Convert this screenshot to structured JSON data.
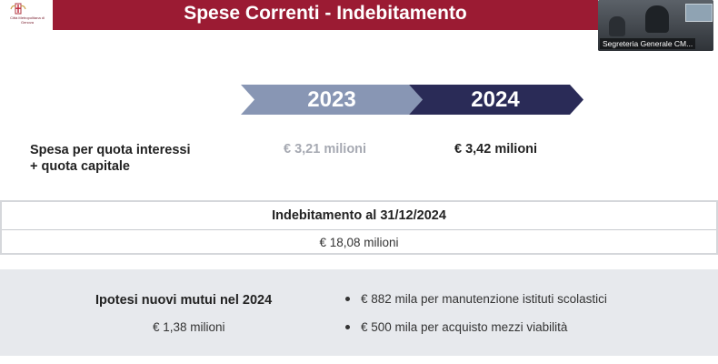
{
  "header": {
    "title": "Spese Correnti - Indebitamento",
    "logo_text": "Città Metropolitana di Genova",
    "title_bar_color": "#9b1b33"
  },
  "video_overlay": {
    "caption": "Segreteria Generale CM..."
  },
  "years": {
    "first": "2023",
    "second": "2024",
    "first_color": "#8896b4",
    "second_color": "#2a2b57"
  },
  "spesa": {
    "label_line1": "Spesa per quota interessi",
    "label_line2": "+ quota capitale",
    "value_2023": "€ 3,21 milioni",
    "value_2024": "€ 3,42 milioni"
  },
  "indebitamento": {
    "title": "Indebitamento al 31/12/2024",
    "value": "€ 18,08 milioni"
  },
  "mutui": {
    "title": "Ipotesi nuovi mutui nel 2024",
    "value": "€ 1,38 milioni",
    "bullets": [
      "€ 882 mila per manutenzione istituti scolastici",
      "€ 500 mila per acquisto mezzi viabilità"
    ]
  }
}
